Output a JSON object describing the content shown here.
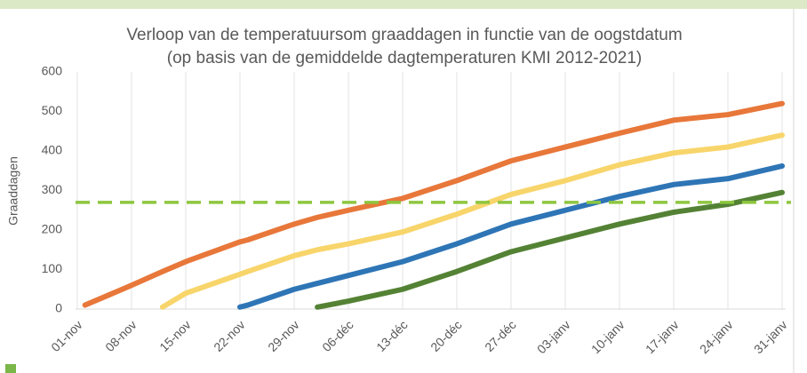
{
  "chart_data": {
    "type": "line",
    "title": "Verloop van de temperatuursom graaddagen in functie van de oogstdatum",
    "subtitle": "(op basis van de gemiddelde dagtemperaturen KMI 2012-2021)",
    "y_label": "Graaddagen",
    "x": [
      1,
      7,
      11,
      14,
      21,
      22,
      28,
      31,
      35,
      42,
      49,
      56,
      63,
      70,
      77,
      84,
      91
    ],
    "xlim": [
      0,
      91
    ],
    "xticks": [
      {
        "value": 0,
        "label": "01-nov"
      },
      {
        "value": 7,
        "label": "08-nov"
      },
      {
        "value": 14,
        "label": "15-nov"
      },
      {
        "value": 21,
        "label": "22-nov"
      },
      {
        "value": 28,
        "label": "29-nov"
      },
      {
        "value": 35,
        "label": "06-déc"
      },
      {
        "value": 42,
        "label": "13-déc"
      },
      {
        "value": 49,
        "label": "20-déc"
      },
      {
        "value": 56,
        "label": "27-déc"
      },
      {
        "value": 63,
        "label": "03-janv"
      },
      {
        "value": 70,
        "label": "10-janv"
      },
      {
        "value": 77,
        "label": "17-janv"
      },
      {
        "value": 84,
        "label": "24-janv"
      },
      {
        "value": 91,
        "label": "31-janv"
      }
    ],
    "ylim": [
      0,
      600
    ],
    "yticks": [
      0,
      100,
      200,
      300,
      400,
      500,
      600
    ],
    "grid": "x",
    "series": [
      {
        "color": "#e8773a",
        "values": [
          10,
          60,
          95,
          120,
          170,
          175,
          215,
          232,
          250,
          280,
          325,
          375,
          410,
          445,
          478,
          492,
          520
        ]
      },
      {
        "color": "#f8d56b",
        "values": [
          null,
          null,
          5,
          40,
          88,
          95,
          135,
          150,
          165,
          195,
          240,
          290,
          325,
          365,
          395,
          410,
          440
        ]
      },
      {
        "color": "#2e75b6",
        "values": [
          null,
          null,
          null,
          null,
          5,
          10,
          50,
          65,
          85,
          120,
          165,
          215,
          250,
          285,
          315,
          330,
          362
        ]
      },
      {
        "color": "#548235",
        "values": [
          null,
          null,
          null,
          null,
          null,
          null,
          null,
          5,
          20,
          50,
          95,
          145,
          180,
          215,
          245,
          265,
          295
        ]
      }
    ],
    "reference_line": {
      "value": 270,
      "color": "#8dc63f"
    }
  }
}
